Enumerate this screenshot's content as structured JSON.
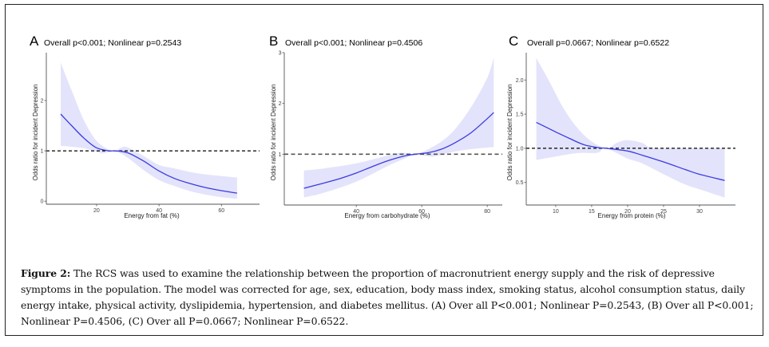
{
  "figure": {
    "label": "Figure 2:",
    "caption": " The RCS was used to examine the relationship between the proportion of macronutrient energy supply and the risk of depressive symptoms in the population. The model was corrected for age, sex, education, body mass index, smoking status, alcohol consumption status, daily energy intake, physical activity, dyslipidemia, hypertension, and diabetes mellitus. (A) Over all P<0.001; Nonlinear P=0.2543, (B) Over all P<0.001; Nonlinear P=0.4506, (C) Over all P=0.0667; Nonlinear P=0.6522."
  },
  "colors": {
    "line": "#3b3be0",
    "band": "#e3e3fb",
    "reference_A": "#000000",
    "reference_B": "#555555",
    "reference_C": "#000000",
    "axis": "#555555"
  },
  "chart_data": [
    {
      "type": "line",
      "panel": "A",
      "title": "Overall p<0.001;  Nonlinear p=0.2543",
      "xlabel": "Energy from fat (%)",
      "ylabel": "Odds ratio for incident Depression",
      "xticks": [
        20,
        40,
        60
      ],
      "yticks": [
        0,
        1,
        2
      ],
      "xlim": [
        3.9,
        72.2
      ],
      "ylim": [
        -0.06,
        2.95
      ],
      "reference_line": 1,
      "grid": false,
      "series": [
        {
          "name": "OR",
          "x": [
            8.5,
            12,
            16,
            20,
            24,
            26,
            30,
            35,
            40,
            45,
            50,
            55,
            60,
            65
          ],
          "y": [
            1.73,
            1.5,
            1.25,
            1.06,
            1.0,
            1.0,
            0.96,
            0.8,
            0.6,
            0.45,
            0.35,
            0.27,
            0.21,
            0.16
          ]
        },
        {
          "name": "upper_CI",
          "x": [
            8.5,
            12,
            16,
            20,
            24,
            26,
            28,
            30,
            35,
            40,
            45,
            50,
            55,
            60,
            65
          ],
          "y": [
            2.75,
            2.2,
            1.6,
            1.2,
            1.02,
            1.0,
            1.07,
            1.07,
            0.9,
            0.72,
            0.65,
            0.58,
            0.53,
            0.5,
            0.47
          ]
        },
        {
          "name": "lower_CI",
          "x": [
            8.5,
            12,
            16,
            20,
            22,
            24,
            26,
            30,
            35,
            40,
            45,
            50,
            55,
            60,
            65
          ],
          "y": [
            1.1,
            1.08,
            1.05,
            0.98,
            0.95,
            0.98,
            1.0,
            0.86,
            0.62,
            0.42,
            0.3,
            0.2,
            0.13,
            0.08,
            0.05
          ]
        }
      ]
    },
    {
      "type": "line",
      "panel": "B",
      "title": "Overall p<0.001;  Nonlinear p=0.4506",
      "xlabel": "Energy from carbohydrate (%)",
      "ylabel": "Odds ratio for incident Depression",
      "xticks": [
        40,
        60,
        80
      ],
      "yticks": [
        1,
        2,
        3
      ],
      "xlim": [
        18.0,
        84.6
      ],
      "ylim": [
        -0.0,
        3.0
      ],
      "reference_line": 1,
      "grid": false,
      "series": [
        {
          "name": "OR",
          "x": [
            24,
            30,
            35,
            40,
            45,
            50,
            55,
            58,
            62,
            66,
            70,
            75,
            80,
            82
          ],
          "y": [
            0.33,
            0.43,
            0.52,
            0.63,
            0.76,
            0.88,
            0.97,
            1.0,
            1.03,
            1.1,
            1.22,
            1.42,
            1.7,
            1.82
          ]
        },
        {
          "name": "upper_CI",
          "x": [
            24,
            30,
            40,
            50,
            54,
            58,
            62,
            66,
            70,
            75,
            80,
            82
          ],
          "y": [
            0.68,
            0.72,
            0.82,
            0.98,
            1.03,
            1.0,
            1.1,
            1.25,
            1.48,
            1.92,
            2.5,
            2.9
          ]
        },
        {
          "name": "lower_CI",
          "x": [
            24,
            30,
            40,
            50,
            55,
            58,
            62,
            64,
            70,
            75,
            80,
            82
          ],
          "y": [
            0.15,
            0.24,
            0.46,
            0.78,
            0.92,
            1.0,
            0.96,
            0.96,
            1.05,
            1.1,
            1.13,
            1.14
          ]
        }
      ]
    },
    {
      "type": "line",
      "panel": "C",
      "title": "Overall p=0.0667;  Nonlinear p=0.6522",
      "xlabel": "Energy from protein (%)",
      "ylabel": "Odds ratio for incident Depression",
      "xticks": [
        10,
        15,
        20,
        25,
        30
      ],
      "yticks": [
        "0.5",
        "1.0",
        "1.5",
        "2.0"
      ],
      "xlim": [
        5.9,
        35.0
      ],
      "ylim": [
        0.17,
        2.4
      ],
      "reference_line": 1,
      "grid": false,
      "series": [
        {
          "name": "OR",
          "x": [
            7.3,
            10,
            12,
            14,
            16,
            17,
            20,
            22,
            25,
            28,
            30,
            33.5
          ],
          "y": [
            1.38,
            1.24,
            1.14,
            1.05,
            1.01,
            1.0,
            0.96,
            0.9,
            0.8,
            0.69,
            0.62,
            0.53
          ]
        },
        {
          "name": "upper_CI",
          "x": [
            7.3,
            9,
            11,
            13,
            15,
            17,
            18.5,
            20,
            22,
            23,
            25,
            33.5
          ],
          "y": [
            2.32,
            2.0,
            1.6,
            1.3,
            1.1,
            1.0,
            1.08,
            1.12,
            1.08,
            1.02,
            1.0,
            1.0
          ]
        },
        {
          "name": "lower_CI",
          "x": [
            7.3,
            10,
            13,
            15,
            16,
            17,
            20,
            22,
            25,
            28,
            30,
            33.5
          ],
          "y": [
            0.83,
            0.88,
            0.93,
            0.93,
            0.94,
            1.0,
            0.85,
            0.78,
            0.62,
            0.47,
            0.4,
            0.28
          ]
        }
      ]
    }
  ]
}
